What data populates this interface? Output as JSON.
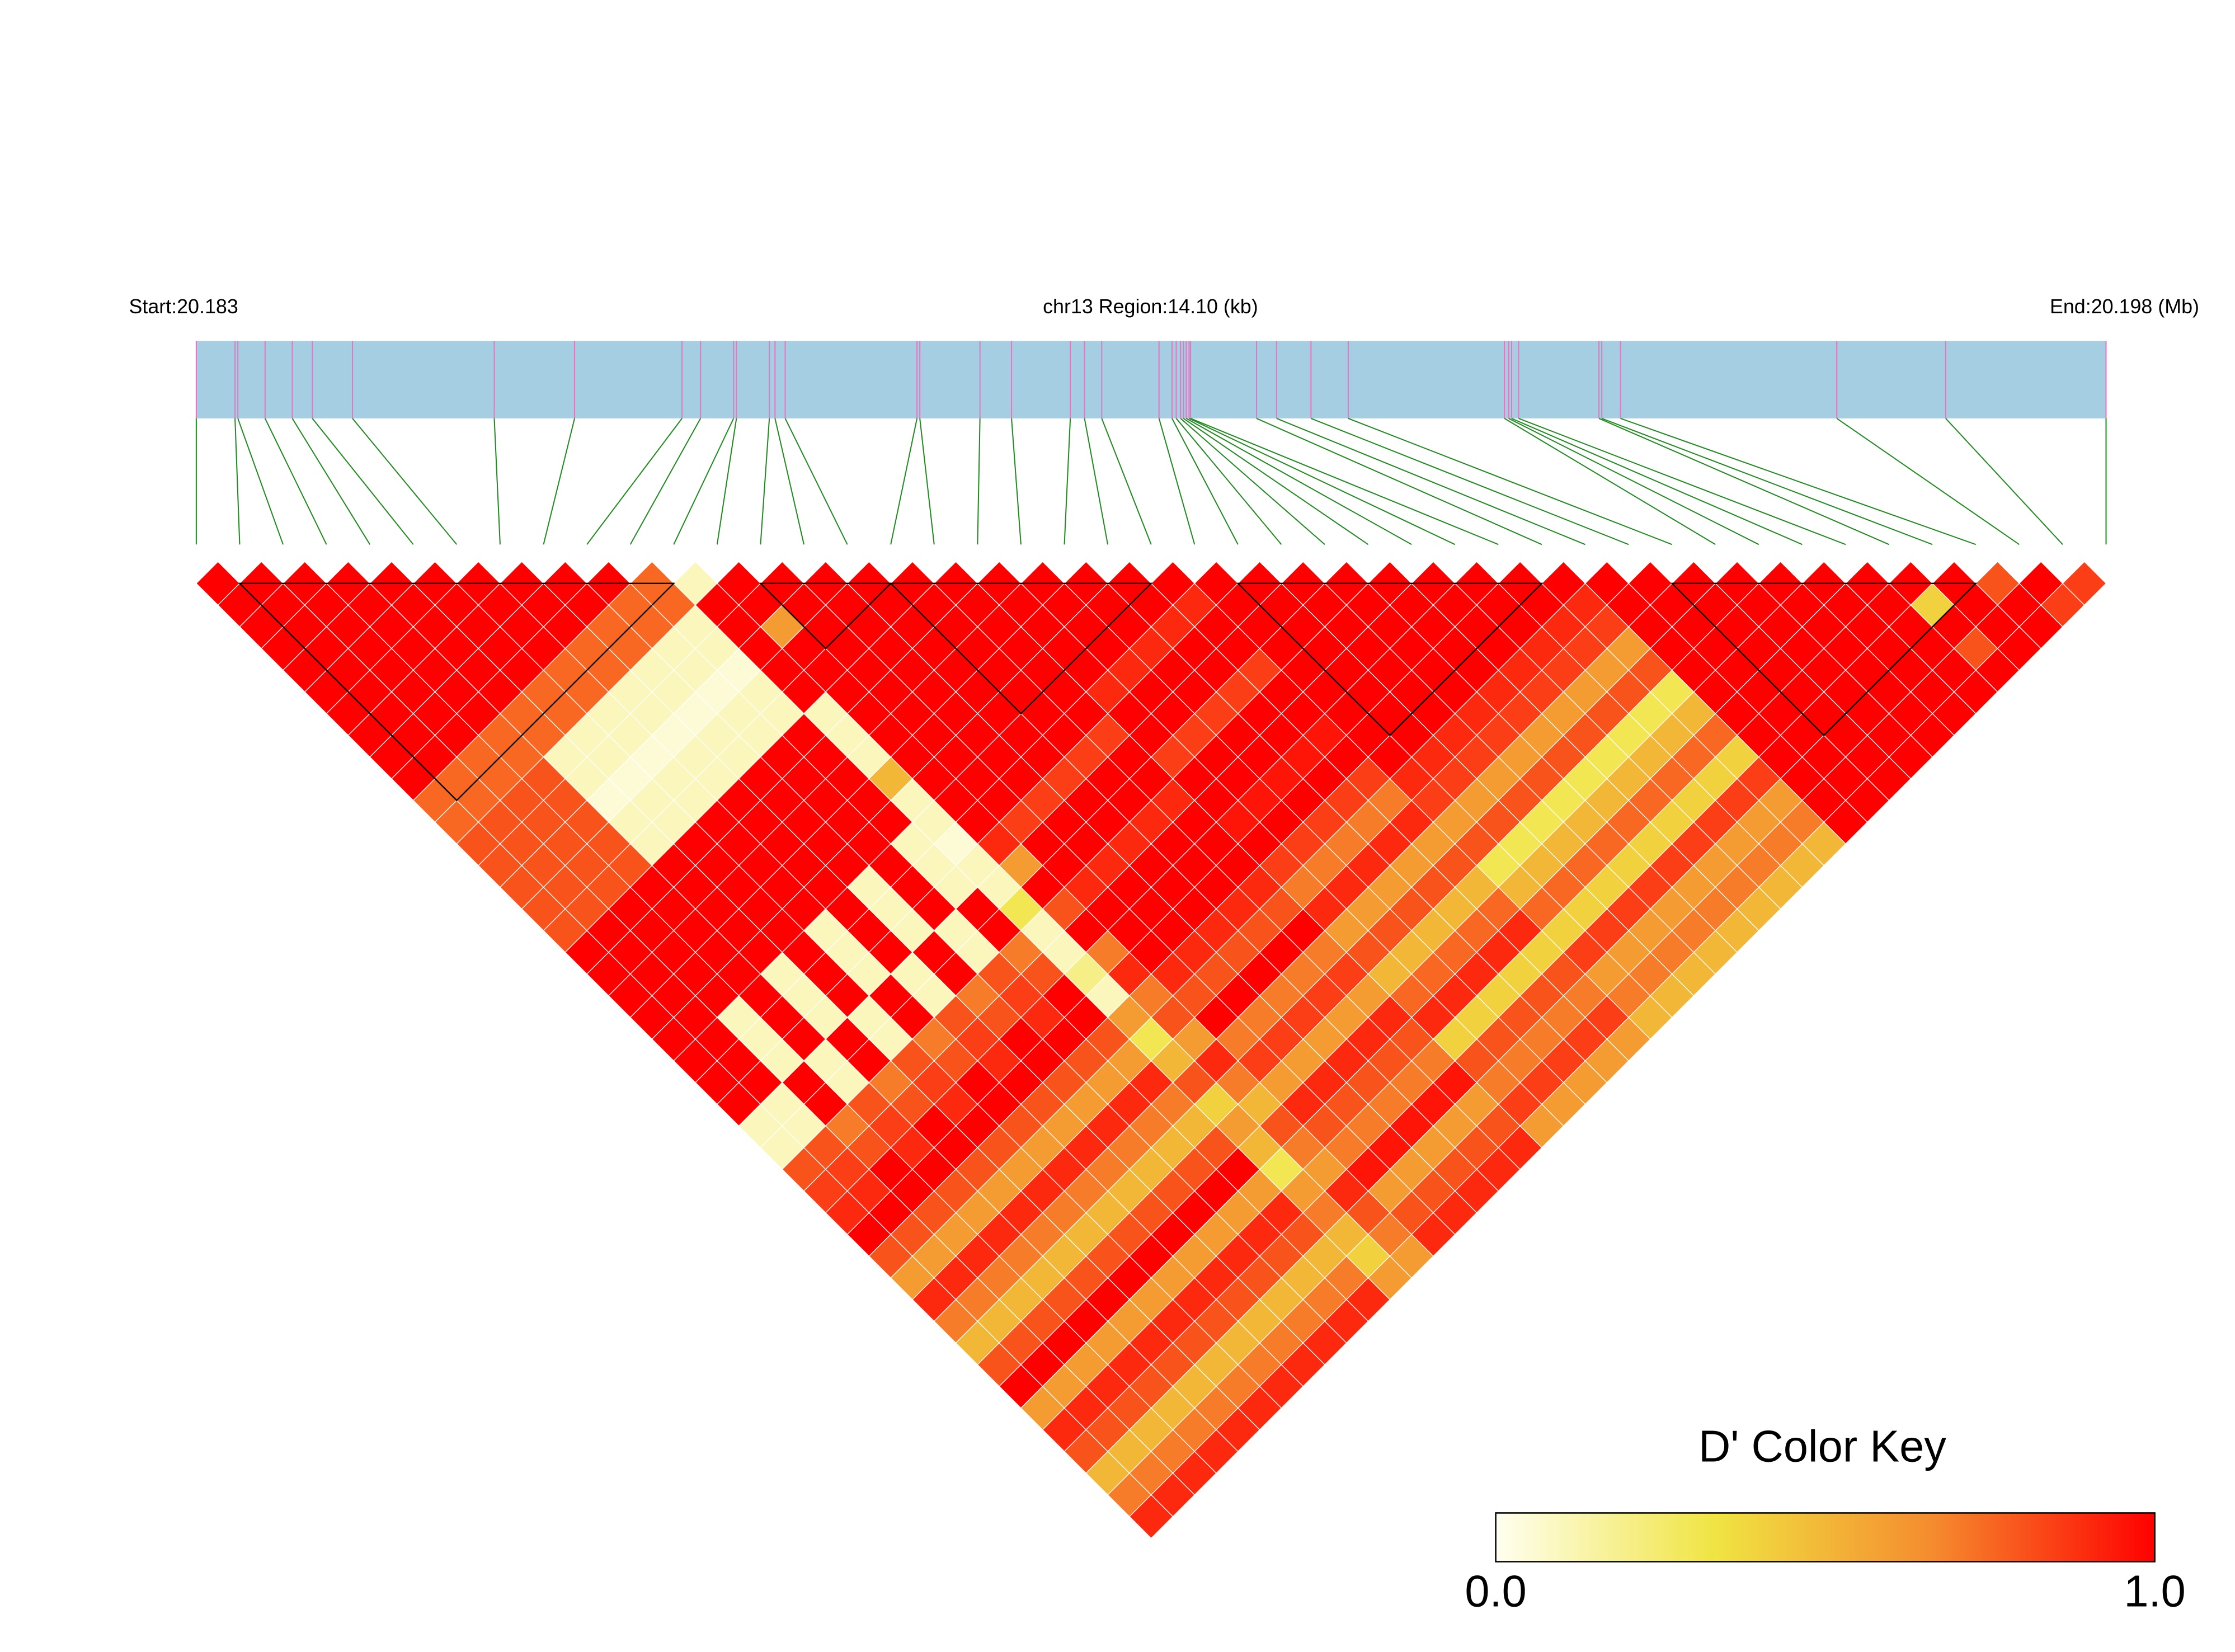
{
  "chart_data": {
    "type": "ld-heatmap",
    "start_label": "Start:20.183",
    "region_label": "chr13 Region:14.10 (kb)",
    "end_label": "End:20.198 (Mb)",
    "track_color": "#a6cee3",
    "marker_color": "#e377c2",
    "connector_color": "#228b22",
    "snp_positions": [
      20.1834,
      20.183686,
      20.183707,
      20.183908,
      20.184109,
      20.184257,
      20.184553,
      20.1856,
      20.186193,
      20.186986,
      20.187123,
      20.187367,
      20.187388,
      20.187631,
      20.187673,
      20.187748,
      20.188721,
      20.188742,
      20.189186,
      20.189419,
      20.189853,
      20.189958,
      20.190085,
      20.190508,
      20.190604,
      20.190635,
      20.190667,
      20.190688,
      20.190709,
      20.19073,
      20.190741,
      20.191228,
      20.191376,
      20.19163,
      20.191905,
      20.193058,
      20.193089,
      20.193111,
      20.193163,
      20.193756,
      20.193777,
      20.193915,
      20.195512,
      20.196316,
      20.1975
    ],
    "blocks": [
      [
        1,
        11
      ],
      [
        13,
        16
      ],
      [
        16,
        22
      ],
      [
        24,
        31
      ],
      [
        34,
        41
      ]
    ],
    "matrix": [
      [
        1,
        1,
        1,
        1,
        1,
        1,
        1,
        1,
        1,
        1,
        0.75,
        0.75,
        0.8,
        0.8,
        0.8,
        0.8,
        0.8,
        1,
        1,
        1,
        1,
        1,
        1,
        1,
        1,
        0.1,
        0.1,
        0.8,
        0.85,
        0.9,
        1,
        0.8,
        0.6,
        0.9,
        0.7,
        0.5,
        0.8,
        1,
        0.6,
        0.9,
        0.8,
        0.5,
        0.7,
        0.9
      ],
      [
        1,
        1,
        1,
        1,
        1,
        1,
        1,
        1,
        1,
        0.75,
        0.75,
        0.8,
        0.8,
        0.8,
        0.8,
        0.8,
        1,
        1,
        1,
        1,
        1,
        1,
        1,
        1,
        0.1,
        0.1,
        0.8,
        0.85,
        0.9,
        1,
        0.8,
        0.6,
        0.9,
        0.7,
        0.5,
        0.8,
        1,
        0.6,
        0.9,
        0.8,
        0.5,
        0.7,
        0.9
      ],
      [
        1,
        1,
        1,
        1,
        1,
        1,
        1,
        1,
        0.75,
        0.75,
        0.8,
        0.8,
        0.8,
        0.8,
        0.8,
        1,
        1,
        1,
        1,
        1,
        0.1,
        0.1,
        0.1,
        1,
        1,
        0.7,
        0.8,
        1,
        1,
        0.8,
        0.6,
        0.9,
        0.7,
        0.5,
        0.8,
        1,
        0.6,
        0.9,
        0.8,
        0.5,
        0.7,
        0.9
      ],
      [
        1,
        1,
        1,
        1,
        1,
        1,
        1,
        0.75,
        0.75,
        0.8,
        0.8,
        0.8,
        0.8,
        0.8,
        1,
        1,
        1,
        1,
        1,
        1,
        1,
        1,
        0.1,
        0.1,
        0.8,
        0.85,
        0.9,
        1,
        0.8,
        0.6,
        0.9,
        0.7,
        0.5,
        0.8,
        1,
        0.6,
        0.9,
        0.8,
        0.5,
        0.7,
        0.9
      ],
      [
        1,
        1,
        1,
        1,
        1,
        1,
        0.75,
        0.75,
        0.1,
        0.1,
        0.05,
        0.1,
        0.1,
        1,
        1,
        1,
        1,
        1,
        0.1,
        0.1,
        0.1,
        1,
        1,
        0.7,
        0.8,
        1,
        1,
        0.8,
        0.6,
        0.9,
        0.7,
        0.5,
        0.8,
        1,
        0.6,
        0.9,
        0.8,
        0.5,
        0.7,
        0.9
      ],
      [
        1,
        1,
        1,
        1,
        1,
        0.75,
        0.75,
        0.1,
        0.1,
        0.05,
        0.1,
        0.1,
        1,
        1,
        1,
        1,
        1,
        1,
        1,
        1,
        0.1,
        0.1,
        0.8,
        0.85,
        0.9,
        1,
        0.8,
        0.6,
        0.9,
        0.7,
        0.5,
        0.8,
        1,
        0.6,
        0.9,
        0.8,
        0.5,
        0.7,
        0.9
      ],
      [
        1,
        1,
        1,
        1,
        0.75,
        0.75,
        0.1,
        0.1,
        0.05,
        0.1,
        0.1,
        1,
        1,
        1,
        1,
        1,
        0.1,
        0.1,
        0.1,
        1,
        1,
        0.7,
        0.8,
        1,
        1,
        0.8,
        0.6,
        0.9,
        0.7,
        0.5,
        0.8,
        1,
        0.6,
        0.9,
        0.8,
        0.5,
        0.7,
        0.9
      ],
      [
        1,
        1,
        1,
        0.75,
        0.75,
        0.1,
        0.1,
        0.05,
        0.1,
        0.1,
        1,
        1,
        1,
        1,
        1,
        1,
        1,
        1,
        0.1,
        0.1,
        0.8,
        0.85,
        0.9,
        1,
        0.8,
        0.6,
        0.9,
        0.7,
        0.5,
        0.8,
        1,
        0.6,
        0.9,
        0.8,
        0.5,
        0.7,
        0.9
      ],
      [
        1,
        1,
        0.75,
        0.75,
        0.1,
        0.1,
        0.05,
        0.1,
        0.1,
        1,
        1,
        1,
        1,
        1,
        0.1,
        0.1,
        0.1,
        1,
        1,
        0.7,
        0.8,
        1,
        1,
        0.8,
        0.6,
        0.9,
        0.7,
        0.5,
        0.8,
        1,
        0.6,
        0.9,
        0.8,
        0.5,
        0.7,
        0.9
      ],
      [
        1,
        0.75,
        0.75,
        0.1,
        0.1,
        0.05,
        0.1,
        0.1,
        1,
        1,
        1,
        1,
        1,
        1,
        1,
        1,
        0.1,
        0.1,
        0.8,
        0.85,
        0.9,
        1,
        0.8,
        0.6,
        0.9,
        0.7,
        0.5,
        0.8,
        1,
        0.6,
        0.9,
        0.8,
        0.5,
        0.7,
        0.9
      ],
      [
        0.75,
        0.75,
        0.1,
        0.1,
        0.05,
        0.1,
        0.1,
        1,
        1,
        1,
        1,
        1,
        0.1,
        0.1,
        0.1,
        1,
        1,
        0.7,
        0.8,
        1,
        1,
        0.8,
        0.6,
        0.9,
        0.7,
        0.5,
        0.8,
        1,
        0.6,
        0.9,
        0.8,
        0.5,
        0.7,
        0.9
      ],
      [
        0.1,
        1,
        1,
        1,
        1,
        1,
        0.1,
        0.1,
        0.1,
        0.5,
        0.1,
        0.1,
        0.05,
        0.1,
        0.1,
        0.3,
        0.1,
        0.1,
        0.2,
        0.1,
        0.6,
        0.3,
        0.5,
        0.8,
        0.4,
        0.6,
        0.5,
        0.3,
        0.6,
        0.7,
        0.5,
        0.4,
        0.6
      ],
      [
        1,
        1,
        0.6,
        1,
        1,
        1,
        1,
        1,
        1,
        1,
        1,
        1,
        0.9,
        0.6,
        1,
        0.8,
        1,
        0.7,
        0.9,
        0.7,
        0.8,
        0.6,
        0.9,
        0.7,
        0.5,
        0.8,
        0.7,
        0.6,
        0.9,
        0.8,
        0.7,
        0.6
      ],
      [
        1,
        1,
        1,
        1,
        1,
        1,
        1,
        1,
        1,
        1,
        1,
        0.85,
        1,
        1,
        0.9,
        1,
        1,
        1,
        0.9,
        0.8,
        1,
        0.7,
        0.85,
        0.6,
        0.9,
        0.8,
        0.7,
        0.95,
        0.6,
        0.8,
        0.9
      ],
      [
        1,
        1,
        1,
        1,
        1,
        1,
        1,
        1,
        1,
        1,
        0.85,
        1,
        1,
        0.9,
        1,
        1,
        1,
        0.9,
        0.8,
        1,
        0.7,
        0.85,
        0.6,
        0.9,
        0.8,
        0.7,
        0.95,
        0.6,
        0.8,
        0.9
      ],
      [
        1,
        1,
        1,
        1,
        1,
        1,
        1,
        1,
        1,
        0.85,
        1,
        1,
        0.9,
        1,
        1,
        1,
        0.9,
        0.8,
        1,
        0.7,
        0.85,
        0.6,
        0.9,
        0.8,
        0.7,
        0.95,
        0.6,
        0.8,
        0.9
      ],
      [
        1,
        1,
        1,
        1,
        1,
        1,
        1,
        1,
        0.85,
        1,
        1,
        0.9,
        1,
        1,
        1,
        0.9,
        0.8,
        1,
        0.7,
        0.85,
        0.6,
        0.9,
        0.8,
        0.7,
        0.95,
        0.6,
        0.8,
        0.9
      ],
      [
        1,
        1,
        1,
        1,
        1,
        1,
        1,
        0.85,
        1,
        1,
        0.9,
        1,
        1,
        1,
        0.9,
        0.8,
        1,
        0.7,
        0.85,
        0.6,
        0.9,
        0.8,
        0.7,
        0.95,
        0.6,
        0.8,
        0.9
      ],
      [
        1,
        1,
        1,
        1,
        1,
        0.9,
        1,
        1,
        0.85,
        1,
        1,
        0.95,
        1,
        0.85,
        0.7,
        0.9,
        0.6,
        0.8,
        0.5,
        0.75,
        0.9,
        0.4,
        0.8,
        0.7,
        0.85,
        0.6
      ],
      [
        1,
        1,
        1,
        1,
        0.9,
        1,
        1,
        0.85,
        1,
        1,
        0.95,
        1,
        0.85,
        0.7,
        0.9,
        0.6,
        0.8,
        0.5,
        0.75,
        0.9,
        0.4,
        0.8,
        0.7,
        0.85,
        0.6
      ],
      [
        1,
        1,
        1,
        0.9,
        1,
        1,
        0.85,
        1,
        1,
        0.95,
        1,
        0.85,
        0.7,
        0.9,
        0.6,
        0.8,
        0.5,
        0.75,
        0.9,
        0.4,
        0.8,
        0.7,
        0.85,
        0.6
      ],
      [
        1,
        1,
        0.9,
        1,
        1,
        0.85,
        1,
        1,
        0.95,
        1,
        0.85,
        0.7,
        0.9,
        0.6,
        0.8,
        0.5,
        0.75,
        0.9,
        0.4,
        0.8,
        0.7,
        0.85,
        0.6
      ],
      [
        1,
        0.9,
        1,
        1,
        0.85,
        1,
        1,
        0.95,
        1,
        0.85,
        0.7,
        0.9,
        0.6,
        0.8,
        0.5,
        0.75,
        0.9,
        0.4,
        0.8,
        0.7,
        0.85,
        0.6
      ],
      [
        1,
        1,
        1,
        1,
        1,
        1,
        1,
        1,
        1,
        0.9,
        0.85,
        0.6,
        0.8,
        0.3,
        0.5,
        0.75,
        0.4,
        0.85,
        0.6,
        0.7,
        0.5
      ],
      [
        1,
        1,
        1,
        1,
        1,
        1,
        1,
        1,
        0.9,
        0.85,
        0.6,
        0.8,
        0.3,
        0.5,
        0.75,
        0.4,
        0.85,
        0.6,
        0.7,
        0.5
      ],
      [
        1,
        1,
        1,
        1,
        1,
        1,
        1,
        0.9,
        0.85,
        0.6,
        0.8,
        0.3,
        0.5,
        0.75,
        0.4,
        0.85,
        0.6,
        0.7,
        0.5
      ],
      [
        1,
        1,
        1,
        1,
        1,
        1,
        0.9,
        0.85,
        0.6,
        0.8,
        0.3,
        0.5,
        0.75,
        0.4,
        0.85,
        0.6,
        0.7,
        0.5
      ],
      [
        1,
        1,
        1,
        1,
        1,
        0.9,
        0.85,
        0.6,
        0.8,
        0.3,
        0.5,
        0.75,
        0.4,
        0.85,
        0.6,
        0.7,
        0.5
      ],
      [
        1,
        1,
        1,
        1,
        0.9,
        0.85,
        0.6,
        0.8,
        0.3,
        0.5,
        0.75,
        0.4,
        0.85,
        0.6,
        0.7,
        0.5
      ],
      [
        1,
        1,
        1,
        0.9,
        0.85,
        0.6,
        0.8,
        0.3,
        0.5,
        0.75,
        0.4,
        0.85,
        0.6,
        0.7,
        0.5
      ],
      [
        1,
        1,
        0.9,
        0.85,
        0.6,
        0.8,
        0.3,
        0.5,
        0.75,
        0.4,
        0.85,
        0.6,
        0.7,
        0.5
      ],
      [
        1,
        0.9,
        0.85,
        0.6,
        0.8,
        0.3,
        0.5,
        0.75,
        0.4,
        0.85,
        0.6,
        0.7,
        0.5
      ],
      [
        1,
        1,
        1,
        1,
        1,
        1,
        1,
        1,
        1,
        1,
        1,
        1
      ],
      [
        1,
        1,
        1,
        1,
        1,
        1,
        1,
        1,
        1,
        1,
        1
      ],
      [
        1,
        1,
        1,
        1,
        1,
        1,
        1,
        1,
        1,
        1
      ],
      [
        1,
        1,
        1,
        1,
        1,
        1,
        1,
        1,
        1
      ],
      [
        1,
        1,
        1,
        1,
        1,
        1,
        1,
        1
      ],
      [
        1,
        1,
        1,
        1,
        1,
        1,
        1
      ],
      [
        1,
        1,
        1,
        1,
        1,
        1
      ],
      [
        1,
        0.4,
        1,
        0.8,
        1
      ],
      [
        1,
        1,
        1,
        1
      ],
      [
        0.8,
        1,
        1
      ],
      [
        1,
        0.85
      ],
      [
        0.85
      ]
    ],
    "colorbar": {
      "title": "D' Color Key",
      "colors": [
        "#fffff0",
        "#f0e442",
        "#f58a2e",
        "#ff0000"
      ],
      "ticks": [
        {
          "value": 0,
          "label": "0.0"
        },
        {
          "value": 1,
          "label": "1.0"
        }
      ]
    }
  }
}
